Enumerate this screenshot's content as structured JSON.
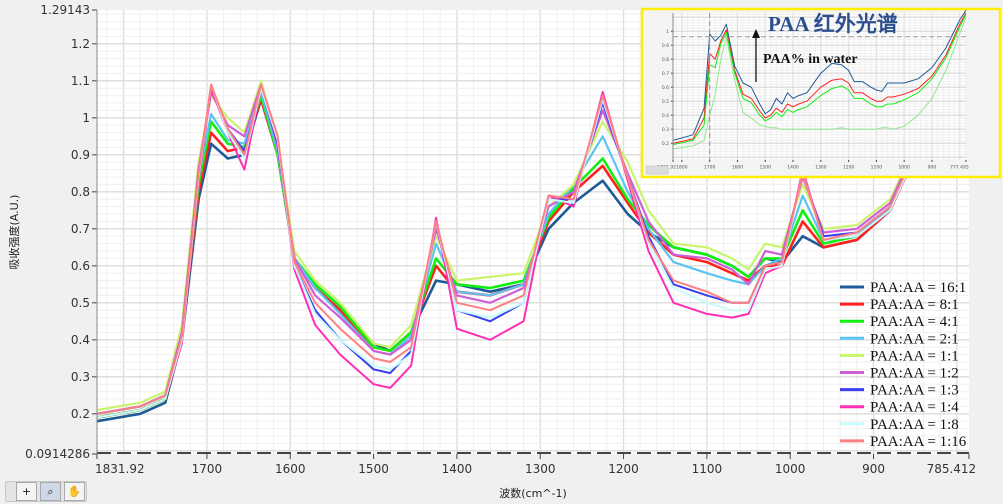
{
  "chart_data": [
    {
      "type": "line",
      "title": "",
      "xlabel": "波数(cm^-1)",
      "ylabel": "吸收强度(A.U.)",
      "xlim": [
        1831.92,
        785.412
      ],
      "ylim": [
        0.0914286,
        1.29143
      ],
      "x_reversed": true,
      "x_ticks": [
        "1831.92",
        "1700",
        "1600",
        "1500",
        "1400",
        "1300",
        "1200",
        "1100",
        "1000",
        "900",
        "785.412"
      ],
      "x_tick_values": [
        1831.92,
        1700,
        1600,
        1500,
        1400,
        1300,
        1200,
        1100,
        1000,
        900,
        785.412
      ],
      "y_ticks": [
        "0.0914286",
        "0.2",
        "0.3",
        "0.4",
        "0.5",
        "0.6",
        "0.7",
        "0.8",
        "0.9",
        "1",
        "1.1",
        "1.2",
        "1.29143"
      ],
      "y_tick_values": [
        0.0914286,
        0.2,
        0.3,
        0.4,
        0.5,
        0.6,
        0.7,
        0.8,
        0.9,
        1,
        1.1,
        1.2,
        1.29143
      ],
      "grid": true,
      "legend_position": "bottom-right",
      "cursor_y": 0.0914286,
      "x": [
        1831.92,
        1780,
        1750,
        1730,
        1710,
        1695,
        1675,
        1655,
        1635,
        1615,
        1595,
        1570,
        1540,
        1500,
        1480,
        1455,
        1425,
        1400,
        1360,
        1320,
        1290,
        1260,
        1225,
        1195,
        1170,
        1140,
        1100,
        1070,
        1050,
        1030,
        1010,
        985,
        960,
        920,
        880,
        840,
        800,
        785.412
      ],
      "series": [
        {
          "name": "PAA:AA = 16:1",
          "color": "#1f5b96",
          "width": 2.6,
          "values": [
            0.18,
            0.2,
            0.23,
            0.4,
            0.78,
            0.93,
            0.89,
            0.9,
            1.05,
            0.9,
            0.62,
            0.54,
            0.48,
            0.39,
            0.37,
            0.42,
            0.56,
            0.55,
            0.53,
            0.55,
            0.7,
            0.77,
            0.83,
            0.74,
            0.69,
            0.65,
            0.63,
            0.6,
            0.57,
            0.62,
            0.61,
            0.68,
            0.65,
            0.67,
            0.75,
            0.95,
            1.2,
            1.29
          ]
        },
        {
          "name": "PAA:AA = 8:1",
          "color": "#ff2020",
          "width": 2.6,
          "values": [
            0.19,
            0.21,
            0.24,
            0.42,
            0.8,
            0.96,
            0.91,
            0.92,
            1.05,
            0.9,
            0.62,
            0.54,
            0.48,
            0.38,
            0.37,
            0.42,
            0.6,
            0.53,
            0.52,
            0.55,
            0.72,
            0.8,
            0.87,
            0.77,
            0.69,
            0.63,
            0.61,
            0.58,
            0.56,
            0.6,
            0.6,
            0.72,
            0.65,
            0.67,
            0.75,
            0.95,
            1.2,
            1.29
          ]
        },
        {
          "name": "PAA:AA = 4:1",
          "color": "#10f010",
          "width": 2.6,
          "values": [
            0.19,
            0.21,
            0.24,
            0.42,
            0.82,
            0.99,
            0.93,
            0.92,
            1.06,
            0.9,
            0.62,
            0.55,
            0.49,
            0.38,
            0.37,
            0.42,
            0.62,
            0.55,
            0.54,
            0.56,
            0.73,
            0.81,
            0.89,
            0.78,
            0.71,
            0.65,
            0.63,
            0.6,
            0.57,
            0.62,
            0.62,
            0.75,
            0.66,
            0.68,
            0.76,
            0.96,
            1.21,
            1.29
          ]
        },
        {
          "name": "PAA:AA = 2:1",
          "color": "#5bc4f5",
          "width": 2.2,
          "values": [
            0.2,
            0.22,
            0.25,
            0.42,
            0.84,
            1.01,
            0.94,
            0.93,
            1.07,
            0.91,
            0.62,
            0.54,
            0.47,
            0.37,
            0.36,
            0.41,
            0.66,
            0.53,
            0.52,
            0.55,
            0.74,
            0.82,
            0.95,
            0.8,
            0.7,
            0.61,
            0.58,
            0.56,
            0.55,
            0.6,
            0.62,
            0.79,
            0.67,
            0.68,
            0.76,
            0.96,
            1.21,
            1.29
          ]
        },
        {
          "name": "PAA:AA = 1:1",
          "color": "#c8f56a",
          "width": 2.2,
          "values": [
            0.21,
            0.23,
            0.26,
            0.44,
            0.88,
            1.06,
            1.0,
            0.96,
            1.1,
            0.93,
            0.64,
            0.56,
            0.5,
            0.39,
            0.38,
            0.44,
            0.68,
            0.56,
            0.57,
            0.58,
            0.76,
            0.82,
            0.99,
            0.88,
            0.75,
            0.66,
            0.65,
            0.62,
            0.59,
            0.66,
            0.65,
            0.82,
            0.7,
            0.71,
            0.78,
            0.97,
            1.22,
            1.29
          ]
        },
        {
          "name": "PAA:AA = 1:2",
          "color": "#cf5fd8",
          "width": 2.2,
          "values": [
            0.2,
            0.22,
            0.25,
            0.42,
            0.86,
            1.07,
            0.98,
            0.95,
            1.09,
            0.92,
            0.62,
            0.52,
            0.46,
            0.37,
            0.36,
            0.4,
            0.7,
            0.52,
            0.5,
            0.54,
            0.76,
            0.8,
            1.02,
            0.85,
            0.72,
            0.63,
            0.62,
            0.59,
            0.55,
            0.64,
            0.63,
            0.84,
            0.69,
            0.7,
            0.77,
            0.97,
            1.21,
            1.29
          ]
        },
        {
          "name": "PAA:AA = 1:3",
          "color": "#3a3ef0",
          "width": 2.0,
          "values": [
            0.2,
            0.22,
            0.25,
            0.41,
            0.85,
            1.08,
            0.97,
            0.91,
            1.08,
            0.93,
            0.6,
            0.48,
            0.4,
            0.32,
            0.31,
            0.37,
            0.72,
            0.48,
            0.45,
            0.5,
            0.78,
            0.78,
            1.04,
            0.84,
            0.68,
            0.55,
            0.52,
            0.5,
            0.5,
            0.6,
            0.61,
            0.85,
            0.68,
            0.69,
            0.76,
            0.96,
            1.21,
            1.29
          ]
        },
        {
          "name": "PAA:AA = 1:4",
          "color": "#ff2fb5",
          "width": 2.0,
          "values": [
            0.19,
            0.21,
            0.24,
            0.39,
            0.83,
            1.08,
            0.96,
            0.86,
            1.08,
            0.94,
            0.59,
            0.44,
            0.36,
            0.28,
            0.27,
            0.33,
            0.73,
            0.43,
            0.4,
            0.45,
            0.79,
            0.76,
            1.07,
            0.83,
            0.64,
            0.5,
            0.47,
            0.46,
            0.47,
            0.58,
            0.6,
            0.86,
            0.67,
            0.68,
            0.75,
            0.95,
            1.2,
            1.29
          ]
        },
        {
          "name": "PAA:AA = 1:8",
          "color": "#c8fbfb",
          "width": 2.0,
          "values": [
            0.19,
            0.21,
            0.24,
            0.4,
            0.84,
            1.09,
            0.96,
            0.89,
            1.08,
            0.94,
            0.6,
            0.47,
            0.4,
            0.33,
            0.32,
            0.36,
            0.72,
            0.48,
            0.46,
            0.5,
            0.78,
            0.77,
            1.05,
            0.84,
            0.66,
            0.54,
            0.5,
            0.48,
            0.48,
            0.59,
            0.6,
            0.85,
            0.67,
            0.68,
            0.75,
            0.95,
            1.2,
            1.29
          ]
        },
        {
          "name": "PAA:AA = 1:16",
          "color": "#ff8080",
          "width": 2.0,
          "values": [
            0.2,
            0.22,
            0.25,
            0.41,
            0.85,
            1.09,
            0.97,
            0.9,
            1.09,
            0.95,
            0.61,
            0.5,
            0.43,
            0.35,
            0.34,
            0.38,
            0.72,
            0.5,
            0.48,
            0.52,
            0.79,
            0.78,
            1.06,
            0.84,
            0.67,
            0.56,
            0.53,
            0.5,
            0.5,
            0.6,
            0.61,
            0.85,
            0.67,
            0.69,
            0.76,
            0.96,
            1.21,
            1.29
          ]
        }
      ]
    },
    {
      "type": "line",
      "title": "PAA 红外光谱",
      "annotation": "PAA% in water",
      "border_color": "#ffee00",
      "xlim": [
        1831.92,
        777.495
      ],
      "ylim": [
        0.08,
        1.13
      ],
      "x_reversed": true,
      "x_ticks": [
        "1831.92",
        "1800",
        "1700",
        "1600",
        "1500",
        "1400",
        "1300",
        "1200",
        "1100",
        "1000",
        "900",
        "777.495"
      ],
      "x_tick_values": [
        1831.92,
        1800,
        1700,
        1600,
        1500,
        1400,
        1300,
        1200,
        1100,
        1000,
        900,
        777.495
      ],
      "y_ticks": [
        "0.2",
        "0.3",
        "0.4",
        "0.5",
        "0.6",
        "0.7",
        "0.8",
        "0.9",
        "1"
      ],
      "y_tick_values": [
        0.2,
        0.3,
        0.4,
        0.5,
        0.6,
        0.7,
        0.8,
        0.9,
        1
      ],
      "cursor_x": 1700,
      "cursor_y": 0.96,
      "x": [
        1831.92,
        1760,
        1720,
        1700,
        1680,
        1660,
        1640,
        1610,
        1580,
        1550,
        1520,
        1500,
        1480,
        1460,
        1440,
        1420,
        1400,
        1380,
        1350,
        1300,
        1260,
        1225,
        1200,
        1180,
        1150,
        1120,
        1100,
        1080,
        1060,
        1040,
        1000,
        950,
        900,
        850,
        800,
        777.495
      ],
      "series": [
        {
          "color": "#1f5b96",
          "values": [
            0.22,
            0.26,
            0.45,
            0.98,
            0.93,
            0.97,
            1.05,
            0.75,
            0.63,
            0.6,
            0.48,
            0.41,
            0.44,
            0.52,
            0.48,
            0.56,
            0.52,
            0.54,
            0.56,
            0.7,
            0.77,
            0.76,
            0.72,
            0.64,
            0.64,
            0.6,
            0.58,
            0.57,
            0.63,
            0.63,
            0.63,
            0.66,
            0.74,
            0.88,
            1.08,
            1.15
          ]
        },
        {
          "color": "#ff2020",
          "values": [
            0.2,
            0.23,
            0.38,
            0.84,
            0.8,
            0.93,
            1.01,
            0.72,
            0.55,
            0.52,
            0.43,
            0.38,
            0.4,
            0.45,
            0.42,
            0.48,
            0.46,
            0.48,
            0.5,
            0.6,
            0.65,
            0.66,
            0.63,
            0.56,
            0.56,
            0.52,
            0.5,
            0.5,
            0.53,
            0.53,
            0.55,
            0.59,
            0.68,
            0.83,
            1.05,
            1.13
          ]
        },
        {
          "color": "#10f010",
          "values": [
            0.19,
            0.22,
            0.33,
            0.76,
            0.74,
            0.91,
            0.99,
            0.7,
            0.52,
            0.49,
            0.4,
            0.36,
            0.38,
            0.42,
            0.39,
            0.44,
            0.42,
            0.44,
            0.46,
            0.54,
            0.59,
            0.61,
            0.58,
            0.52,
            0.52,
            0.48,
            0.46,
            0.46,
            0.48,
            0.48,
            0.51,
            0.56,
            0.66,
            0.81,
            1.03,
            1.12
          ]
        },
        {
          "color": "#8ee88e",
          "values": [
            0.16,
            0.18,
            0.22,
            0.4,
            0.55,
            0.8,
            0.96,
            0.65,
            0.42,
            0.38,
            0.33,
            0.32,
            0.31,
            0.31,
            0.3,
            0.3,
            0.3,
            0.3,
            0.3,
            0.3,
            0.3,
            0.31,
            0.3,
            0.3,
            0.3,
            0.3,
            0.3,
            0.31,
            0.31,
            0.3,
            0.32,
            0.4,
            0.52,
            0.72,
            0.98,
            1.1
          ]
        }
      ]
    }
  ],
  "palette": {
    "tools": [
      {
        "icon": "cursor-crosshair-icon",
        "glyph": "+"
      },
      {
        "icon": "zoom-icon",
        "glyph": "⌕"
      },
      {
        "icon": "pan-hand-icon",
        "glyph": "✋"
      }
    ]
  }
}
